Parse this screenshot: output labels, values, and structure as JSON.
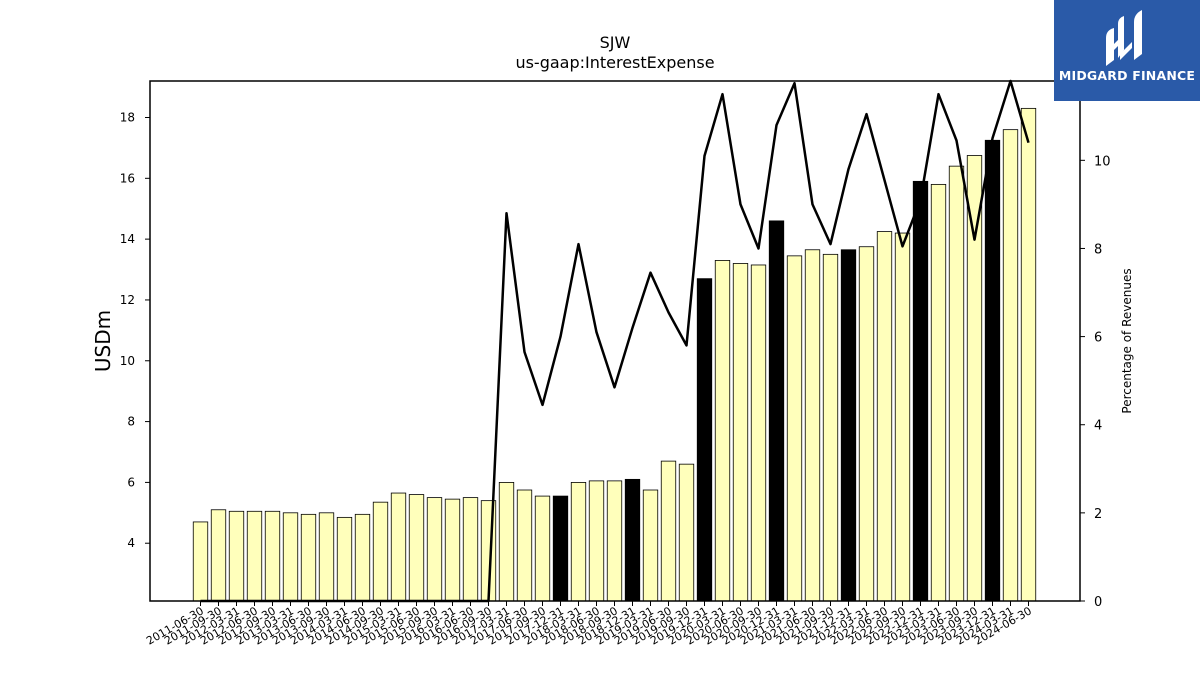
{
  "chart_data": {
    "type": "bar",
    "title": "SJW",
    "subtitle": "us-gaap:InterestExpense",
    "ylabel": "USDm",
    "y2label": "Percentage of Revenues",
    "ylim": [
      2.1,
      19.2
    ],
    "y2lim": [
      0,
      11.8
    ],
    "yticks": [
      4,
      6,
      8,
      10,
      12,
      14,
      16,
      18
    ],
    "y2ticks": [
      0,
      2,
      4,
      6,
      8,
      10
    ],
    "grid": false,
    "categories": [
      "2011-06-30",
      "2011-09-30",
      "2012-03-31",
      "2012-06-30",
      "2012-09-30",
      "2013-03-31",
      "2013-06-30",
      "2013-09-30",
      "2014-03-31",
      "2014-06-30",
      "2014-09-30",
      "2015-03-31",
      "2015-06-30",
      "2015-09-30",
      "2016-03-31",
      "2016-06-30",
      "2016-09-30",
      "2017-03-31",
      "2017-06-30",
      "2017-09-30",
      "2017-12-31",
      "2018-03-31",
      "2018-06-30",
      "2018-09-30",
      "2018-12-31",
      "2019-03-31",
      "2019-06-30",
      "2019-09-30",
      "2019-12-31",
      "2020-03-31",
      "2020-06-30",
      "2020-09-30",
      "2020-12-31",
      "2021-03-31",
      "2021-06-30",
      "2021-09-30",
      "2021-12-31",
      "2022-03-31",
      "2022-06-30",
      "2022-09-30",
      "2022-12-31",
      "2023-03-31",
      "2023-06-30",
      "2023-09-30",
      "2023-12-31",
      "2024-03-31",
      "2024-06-30"
    ],
    "series": [
      {
        "type": "bar",
        "axis": "left",
        "values": [
          4.7,
          5.1,
          5.05,
          5.05,
          5.05,
          5.0,
          4.95,
          5.0,
          4.85,
          4.95,
          5.35,
          5.65,
          5.6,
          5.5,
          5.45,
          5.5,
          5.4,
          6.0,
          5.75,
          5.55,
          5.55,
          6.0,
          6.05,
          6.05,
          6.1,
          5.75,
          6.7,
          6.6,
          12.7,
          13.3,
          13.2,
          13.15,
          14.6,
          13.45,
          13.65,
          13.5,
          13.65,
          13.75,
          14.25,
          14.2,
          15.9,
          15.8,
          16.4,
          16.75,
          17.25,
          17.6,
          18.3
        ],
        "fill": "#ffffbb",
        "highlight_fill": "#000000",
        "highlight_categories": [
          "2017-12-31",
          "2018-12-31",
          "2019-12-31",
          "2020-12-31",
          "2021-12-31",
          "2022-12-31",
          "2023-12-31"
        ]
      },
      {
        "type": "line",
        "axis": "right",
        "color": "#000000",
        "values": [
          0,
          0,
          0,
          0,
          0,
          0,
          0,
          0,
          0,
          0,
          0,
          0,
          0,
          0,
          0,
          0,
          0,
          8.8,
          5.65,
          4.45,
          6.0,
          8.1,
          6.1,
          4.85,
          6.2,
          7.45,
          6.55,
          5.8,
          10.1,
          11.5,
          9.0,
          8.0,
          10.8,
          11.75,
          9.0,
          8.1,
          9.8,
          11.05,
          9.55,
          8.05,
          9.1,
          11.5,
          10.45,
          8.2,
          10.5,
          11.8,
          10.4
        ]
      }
    ]
  },
  "logo": {
    "text": "MIDGARD FINANCE",
    "bg": "#2a5aa8"
  }
}
